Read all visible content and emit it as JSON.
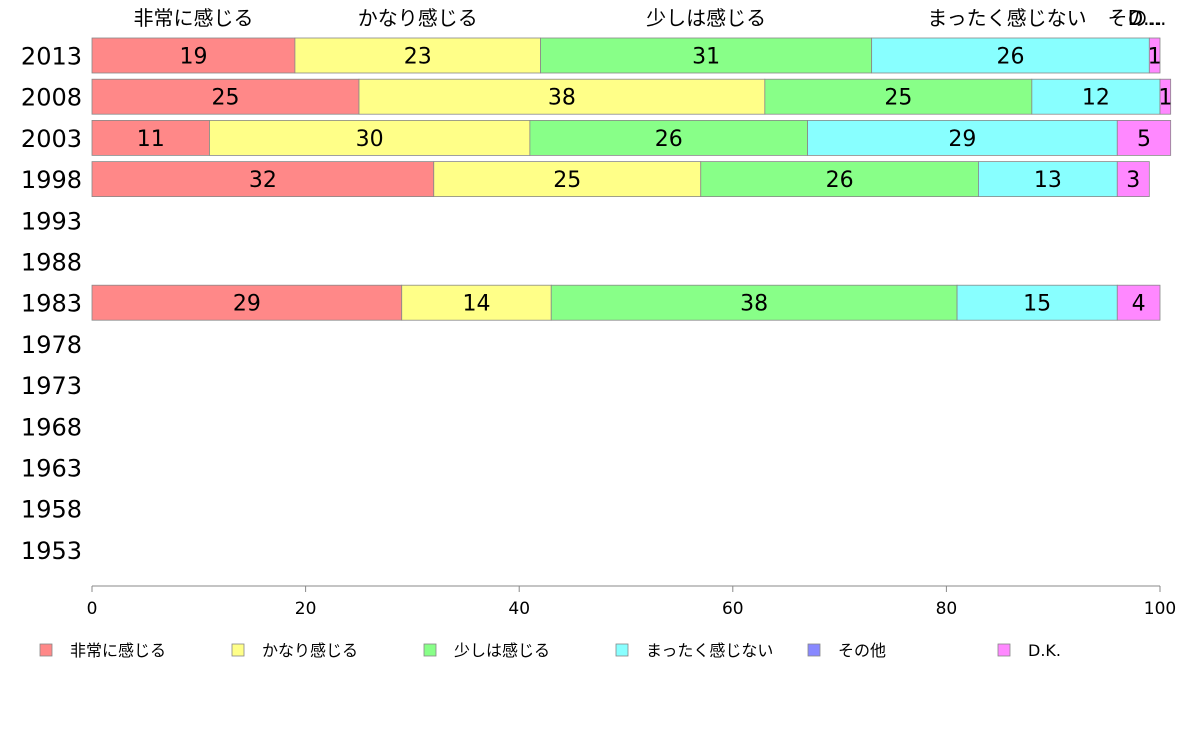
{
  "chart_data": {
    "type": "bar",
    "orientation": "horizontal",
    "stacked": true,
    "categories": [
      "2013",
      "2008",
      "2003",
      "1998",
      "1993",
      "1988",
      "1983",
      "1978",
      "1973",
      "1968",
      "1963",
      "1958",
      "1953"
    ],
    "series": [
      {
        "name": "非常に感じる",
        "color": "#ff8888",
        "values": [
          19,
          25,
          11,
          32,
          null,
          null,
          29,
          null,
          null,
          null,
          null,
          null,
          null
        ]
      },
      {
        "name": "かなり感じる",
        "color": "#ffff88",
        "values": [
          23,
          38,
          30,
          25,
          null,
          null,
          14,
          null,
          null,
          null,
          null,
          null,
          null
        ]
      },
      {
        "name": "少しは感じる",
        "color": "#88ff88",
        "values": [
          31,
          25,
          26,
          26,
          null,
          null,
          38,
          null,
          null,
          null,
          null,
          null,
          null
        ]
      },
      {
        "name": "まったく感じない",
        "color": "#88ffff",
        "values": [
          26,
          12,
          29,
          13,
          null,
          null,
          15,
          null,
          null,
          null,
          null,
          null,
          null
        ]
      },
      {
        "name": "その他",
        "color": "#8888ff",
        "values": [
          0,
          0,
          0,
          0,
          null,
          null,
          0,
          null,
          null,
          null,
          null,
          null,
          null
        ]
      },
      {
        "name": "D.K.",
        "color": "#ff88ff",
        "values": [
          1,
          1,
          5,
          3,
          null,
          null,
          4,
          null,
          null,
          null,
          null,
          null,
          null
        ]
      }
    ],
    "top_labels": [
      "非常に感じる",
      "かなり感じる",
      "少しは感じる",
      "まったく感じない",
      "その...",
      "D..."
    ],
    "xlim": [
      0,
      100
    ],
    "xticks": [
      0,
      20,
      40,
      60,
      80,
      100
    ],
    "title": "",
    "xlabel": "",
    "ylabel": "",
    "grid": false,
    "legend_position": "bottom"
  }
}
